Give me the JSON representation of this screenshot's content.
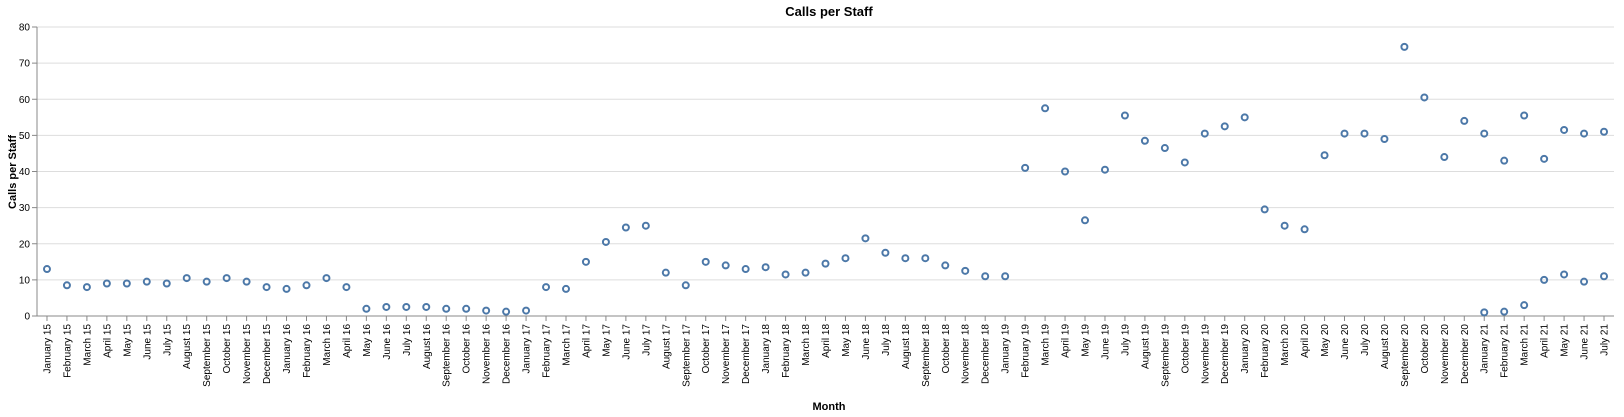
{
  "chart_data": {
    "type": "scatter",
    "title": "Calls per Staff",
    "xlabel": "Month",
    "ylabel": "Calls per Staff",
    "ylim": [
      0,
      80
    ],
    "yticks": [
      0,
      10,
      20,
      30,
      40,
      50,
      60,
      70,
      80
    ],
    "grid": true,
    "point_color": "#4c78a8",
    "categories": [
      "January 15",
      "February 15",
      "March 15",
      "April 15",
      "May 15",
      "June 15",
      "July 15",
      "August 15",
      "September 15",
      "October 15",
      "November 15",
      "December 15",
      "January 16",
      "February 16",
      "March 16",
      "April 16",
      "May 16",
      "June 16",
      "July 16",
      "August 16",
      "September 16",
      "October 16",
      "November 16",
      "December 16",
      "January 17",
      "February 17",
      "March 17",
      "April 17",
      "May 17",
      "June 17",
      "July 17",
      "August 17",
      "September 17",
      "October 17",
      "November 17",
      "December 17",
      "January 18",
      "February 18",
      "March 18",
      "April 18",
      "May 18",
      "June 18",
      "July 18",
      "August 18",
      "September 18",
      "October 18",
      "November 18",
      "December 18",
      "January 19",
      "February 19",
      "March 19",
      "April 19",
      "May 19",
      "June 19",
      "July 19",
      "August 19",
      "September 19",
      "October 19",
      "November 19",
      "December 19",
      "January 20",
      "February 20",
      "March 20",
      "April 20",
      "May 20",
      "June 20",
      "July 20",
      "August 20",
      "September 20",
      "October 20",
      "November 20",
      "December 20",
      "January 21",
      "February 21",
      "March 21",
      "April 21",
      "May 21",
      "June 21",
      "July 21"
    ],
    "points": [
      {
        "x": "January 15",
        "y": 13
      },
      {
        "x": "February 15",
        "y": 8.5
      },
      {
        "x": "March 15",
        "y": 8
      },
      {
        "x": "April 15",
        "y": 9
      },
      {
        "x": "May 15",
        "y": 9
      },
      {
        "x": "June 15",
        "y": 9.5
      },
      {
        "x": "July 15",
        "y": 9
      },
      {
        "x": "August 15",
        "y": 10.5
      },
      {
        "x": "September 15",
        "y": 9.5
      },
      {
        "x": "October 15",
        "y": 10.5
      },
      {
        "x": "November 15",
        "y": 9.5
      },
      {
        "x": "December 15",
        "y": 8
      },
      {
        "x": "January 16",
        "y": 7.5
      },
      {
        "x": "February 16",
        "y": 8.5
      },
      {
        "x": "March 16",
        "y": 10.5
      },
      {
        "x": "April 16",
        "y": 8
      },
      {
        "x": "May 16",
        "y": 2
      },
      {
        "x": "June 16",
        "y": 2.5
      },
      {
        "x": "July 16",
        "y": 2.5
      },
      {
        "x": "August 16",
        "y": 2.5
      },
      {
        "x": "September 16",
        "y": 2
      },
      {
        "x": "October 16",
        "y": 2
      },
      {
        "x": "November 16",
        "y": 1.5
      },
      {
        "x": "December 16",
        "y": 1.2
      },
      {
        "x": "January 17",
        "y": 1.5
      },
      {
        "x": "February 17",
        "y": 8
      },
      {
        "x": "March 17",
        "y": 7.5
      },
      {
        "x": "April 17",
        "y": 15
      },
      {
        "x": "May 17",
        "y": 20.5
      },
      {
        "x": "June 17",
        "y": 24.5
      },
      {
        "x": "July 17",
        "y": 25
      },
      {
        "x": "August 17",
        "y": 12
      },
      {
        "x": "September 17",
        "y": 8.5
      },
      {
        "x": "October 17",
        "y": 15
      },
      {
        "x": "November 17",
        "y": 14
      },
      {
        "x": "December 17",
        "y": 13
      },
      {
        "x": "January 18",
        "y": 13.5
      },
      {
        "x": "February 18",
        "y": 11.5
      },
      {
        "x": "March 18",
        "y": 12
      },
      {
        "x": "April 18",
        "y": 14.5
      },
      {
        "x": "May 18",
        "y": 16
      },
      {
        "x": "June 18",
        "y": 21.5
      },
      {
        "x": "July 18",
        "y": 17.5
      },
      {
        "x": "August 18",
        "y": 16
      },
      {
        "x": "September 18",
        "y": 16
      },
      {
        "x": "October 18",
        "y": 14
      },
      {
        "x": "November 18",
        "y": 12.5
      },
      {
        "x": "December 18",
        "y": 11
      },
      {
        "x": "January 19",
        "y": 11
      },
      {
        "x": "February 19",
        "y": 41
      },
      {
        "x": "March 19",
        "y": 57.5
      },
      {
        "x": "April 19",
        "y": 40
      },
      {
        "x": "May 19",
        "y": 26.5
      },
      {
        "x": "June 19",
        "y": 40.5
      },
      {
        "x": "July 19",
        "y": 55.5
      },
      {
        "x": "August 19",
        "y": 48.5
      },
      {
        "x": "September 19",
        "y": 46.5
      },
      {
        "x": "October 19",
        "y": 42.5
      },
      {
        "x": "November 19",
        "y": 50.5
      },
      {
        "x": "December 19",
        "y": 52.5
      },
      {
        "x": "January 20",
        "y": 55
      },
      {
        "x": "February 20",
        "y": 29.5
      },
      {
        "x": "March 20",
        "y": 25
      },
      {
        "x": "April 20",
        "y": 24
      },
      {
        "x": "May 20",
        "y": 44.5
      },
      {
        "x": "June 20",
        "y": 50.5
      },
      {
        "x": "July 20",
        "y": 50.5
      },
      {
        "x": "August 20",
        "y": 49
      },
      {
        "x": "September 20",
        "y": 74.5
      },
      {
        "x": "October 20",
        "y": 60.5
      },
      {
        "x": "November 20",
        "y": 44
      },
      {
        "x": "December 20",
        "y": 54
      },
      {
        "x": "January 21",
        "y": 50.5
      },
      {
        "x": "January 21",
        "y": 1
      },
      {
        "x": "February 21",
        "y": 43
      },
      {
        "x": "February 21",
        "y": 1.2
      },
      {
        "x": "March 21",
        "y": 55.5
      },
      {
        "x": "March 21",
        "y": 3
      },
      {
        "x": "April 21",
        "y": 43.5
      },
      {
        "x": "April 21",
        "y": 10
      },
      {
        "x": "May 21",
        "y": 51.5
      },
      {
        "x": "May 21",
        "y": 11.5
      },
      {
        "x": "June 21",
        "y": 50.5
      },
      {
        "x": "June 21",
        "y": 9.5
      },
      {
        "x": "July 21",
        "y": 51
      },
      {
        "x": "July 21",
        "y": 11
      }
    ]
  }
}
